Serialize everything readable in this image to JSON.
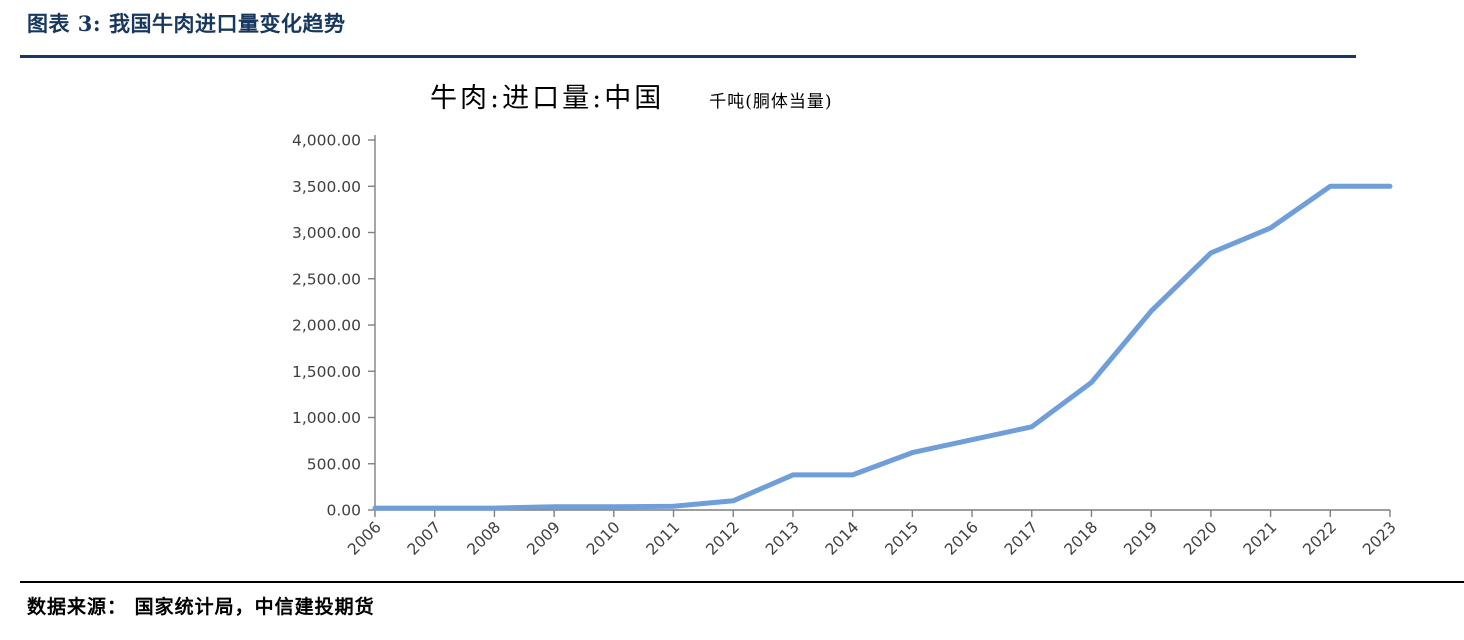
{
  "header": {
    "title": "图表 3: 我国牛肉进口量变化趋势"
  },
  "footer": {
    "source": "数据来源： 国家统计局，中信建投期货"
  },
  "chart_data": {
    "type": "line",
    "title": "牛肉:进口量:中国",
    "unit_label": "千吨(胴体当量)",
    "categories": [
      "2006",
      "2007",
      "2008",
      "2009",
      "2010",
      "2011",
      "2012",
      "2013",
      "2014",
      "2015",
      "2016",
      "2017",
      "2018",
      "2019",
      "2020",
      "2021",
      "2022",
      "2023"
    ],
    "values": [
      20,
      20,
      20,
      35,
      35,
      40,
      100,
      380,
      380,
      620,
      760,
      900,
      1380,
      2150,
      2780,
      3050,
      3500,
      3500
    ],
    "ylabel": "",
    "xlabel": "",
    "ylim": [
      0,
      4000
    ],
    "ytick_step": 500,
    "ytick_labels": [
      "0.00",
      "500.00",
      "1,000.00",
      "1,500.00",
      "2,000.00",
      "2,500.00",
      "3,000.00",
      "3,500.00",
      "4,000.00"
    ],
    "grid": false,
    "legend": "none",
    "line_color": "#6f9ed8",
    "axis_color": "#7f7f7f"
  }
}
